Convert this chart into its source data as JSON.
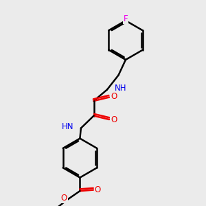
{
  "background_color": "#ebebeb",
  "line_color": "#000000",
  "bond_width": 1.8,
  "font_size_atom": 8.5,
  "colors": {
    "N": "#0000ee",
    "O": "#ee0000",
    "F": "#ee00ee",
    "C": "#000000"
  },
  "layout": {
    "xlim": [
      0,
      10
    ],
    "ylim": [
      0,
      10
    ]
  }
}
